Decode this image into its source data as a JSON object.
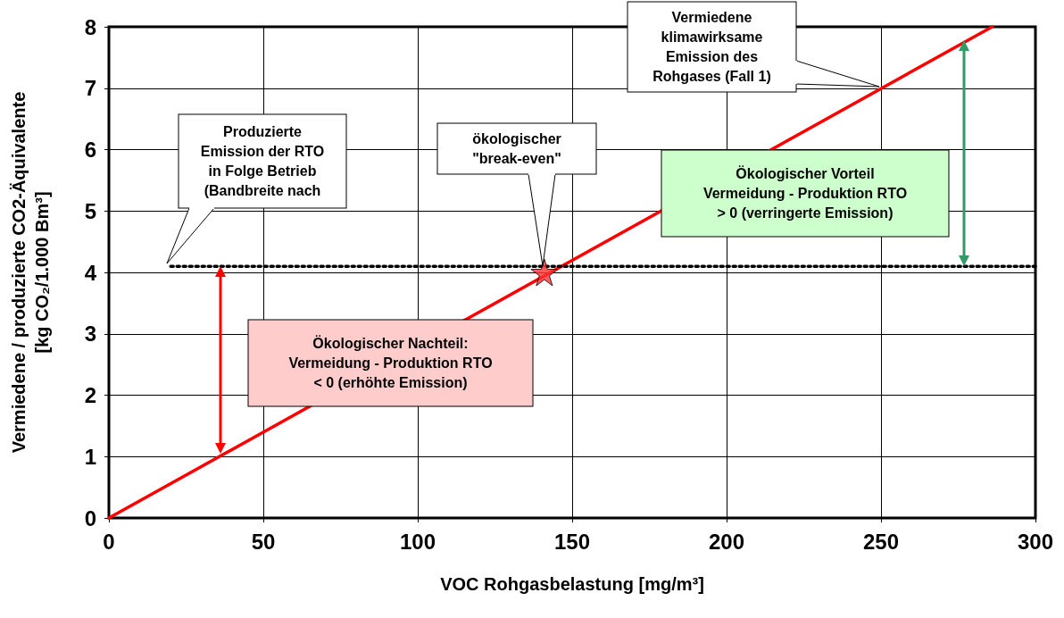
{
  "chart_data": {
    "type": "line",
    "xlabel": "VOC Rohgasbelastung [mg/m³]",
    "ylabel": "Vermiedene / produzierte CO2-Äquivalente\n[kg CO₂/1.000 Bm³]",
    "xlim": [
      0,
      300
    ],
    "xticks": [
      0,
      50,
      100,
      150,
      200,
      250,
      300
    ],
    "ylim": [
      0,
      8
    ],
    "yticks": [
      0,
      1,
      2,
      3,
      4,
      5,
      6,
      7,
      8
    ],
    "grid": true,
    "series": [
      {
        "color": "#ff0000",
        "x": [
          0,
          286
        ],
        "values": [
          0,
          8
        ],
        "line_style": "solid",
        "marker": "none"
      },
      {
        "type": "line",
        "color": "#000000",
        "x": [
          20,
          300
        ],
        "values": [
          4.1,
          4.1
        ],
        "line_style": "dotted",
        "marker": "none"
      },
      {
        "type": "scatter",
        "color": "#ff3333",
        "x": [
          141
        ],
        "values": [
          4
        ],
        "marker": "star"
      }
    ],
    "annotations": [
      "Produzierte\nEmission der RTO\nin Folge Betrieb\n(Bandbreite nach",
      "ökologischer\n\"break-even\"",
      "Vermiedene\nklimawirksame\nEmission des\nRohgases (Fall 1)",
      "Ökologischer Vorteil\nVermeidung - Produktion RTO\n> 0 (verringerte Emission)",
      "Ökologischer Nachteil:\nVermeidung - Produktion RTO\n< 0 (erhöhte Emission)"
    ]
  }
}
